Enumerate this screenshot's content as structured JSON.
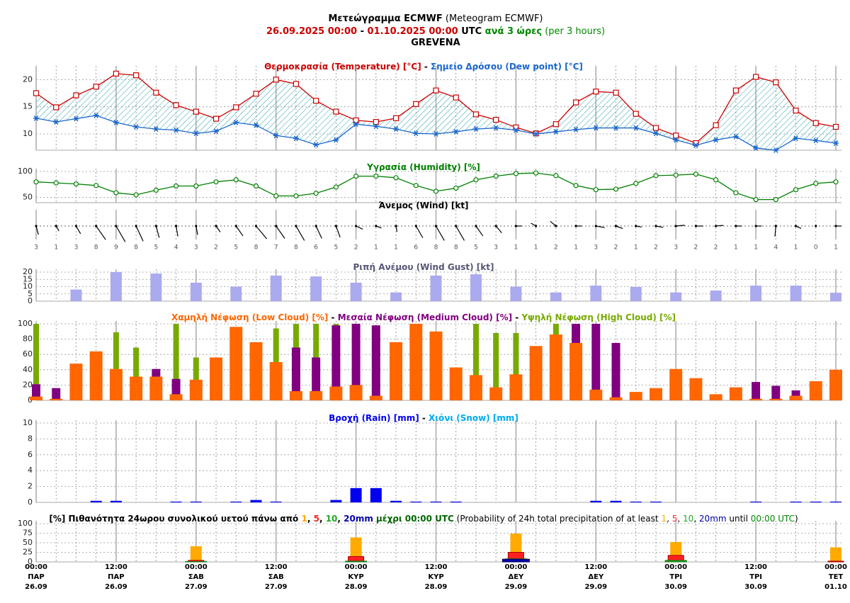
{
  "header": {
    "lines": [
      [
        {
          "text": "Μετεώγραμμα ECMWF",
          "bold": true,
          "color": "#000000"
        },
        {
          "text": " (Meteogram ECMWF)",
          "bold": false,
          "color": "#000000"
        }
      ],
      [
        {
          "text": "26.09.2025 00:00",
          "bold": true,
          "color": "#cc0000"
        },
        {
          "text": " - ",
          "bold": true,
          "color": "#000000"
        },
        {
          "text": "01.10.2025 00:00",
          "bold": true,
          "color": "#cc0000"
        },
        {
          "text": " UTC",
          "bold": true,
          "color": "#000000"
        },
        {
          "text": " ανά 3 ώρες",
          "bold": true,
          "color": "#008800"
        },
        {
          "text": " (per 3 hours)",
          "bold": false,
          "color": "#008800"
        }
      ],
      [
        {
          "text": "GREVENA",
          "bold": true,
          "color": "#000000"
        }
      ]
    ]
  },
  "x_labels": {
    "times": [
      "00:00",
      "12:00",
      "00:00",
      "12:00",
      "00:00",
      "12:00",
      "00:00",
      "12:00",
      "00:00",
      "12:00",
      "00:00"
    ],
    "days": [
      "ΠΑΡ",
      "ΠΑΡ",
      "ΣΑΒ",
      "ΣΑΒ",
      "ΚΥΡ",
      "ΚΥΡ",
      "ΔΕΥ",
      "ΔΕΥ",
      "ΤΡΙ",
      "ΤΡΙ",
      "ΤΕΤ"
    ],
    "dates": [
      "26.09",
      "26.09",
      "27.09",
      "27.09",
      "28.09",
      "28.09",
      "29.09",
      "29.09",
      "30.09",
      "30.09",
      "01.10"
    ]
  },
  "chart_data": [
    {
      "type": "line",
      "title_separator": " - ",
      "fill_between": true,
      "grid": true,
      "series": [
        {
          "name": "Θερμοκρασία (Temperature) [°C]",
          "color": "#cc0000",
          "marker": "square",
          "values": [
            17.5,
            14.9,
            17.1,
            18.7,
            21.1,
            20.8,
            17.6,
            15.3,
            14.1,
            12.8,
            14.9,
            17.4,
            20.0,
            19.2,
            16.1,
            14.1,
            12.5,
            12.2,
            12.9,
            15.5,
            18.0,
            16.7,
            13.6,
            12.6,
            11.2,
            10.1,
            11.8,
            15.8,
            17.8,
            17.6,
            13.7,
            11.1,
            9.7,
            8.3,
            11.6,
            18.0,
            20.5,
            19.5,
            14.3,
            12.0,
            11.3
          ]
        },
        {
          "name": "Σημείο Δρόσου (Dew point) [°C]",
          "color": "#1a66cc",
          "marker": "star",
          "values": [
            12.9,
            12.2,
            12.8,
            13.4,
            12.1,
            11.3,
            10.9,
            10.7,
            10.1,
            10.5,
            12.1,
            11.6,
            9.7,
            9.2,
            8.0,
            8.9,
            11.8,
            11.4,
            10.9,
            10.1,
            10.0,
            10.4,
            10.9,
            11.1,
            10.7,
            10.0,
            10.4,
            10.8,
            11.1,
            11.1,
            11.1,
            10.1,
            8.9,
            7.9,
            8.9,
            9.5,
            7.4,
            7.0,
            9.2,
            8.8,
            8.3
          ]
        }
      ],
      "ylim": [
        7,
        22
      ],
      "yticks": [
        10,
        15,
        20
      ]
    },
    {
      "type": "line",
      "grid": true,
      "series": [
        {
          "name": "Υγρασία (Humidity) [%]",
          "color": "#008000",
          "marker": "circle",
          "values": [
            80,
            78,
            76,
            73,
            59,
            55,
            64,
            72,
            72,
            80,
            84,
            72,
            53,
            53,
            58,
            70,
            91,
            91,
            88,
            73,
            62,
            68,
            84,
            91,
            96,
            97,
            92,
            73,
            65,
            66,
            77,
            92,
            93,
            95,
            84,
            59,
            46,
            46,
            65,
            77,
            80
          ]
        }
      ],
      "ylim": [
        40,
        100
      ],
      "yticks": [
        50,
        100
      ]
    },
    {
      "type": "wind",
      "title": "Άνεμος (Wind) [kt]",
      "values": [
        3,
        1,
        3,
        8,
        9,
        8,
        5,
        4,
        3,
        2,
        5,
        8,
        7,
        8,
        6,
        5,
        2,
        1,
        1,
        6,
        8,
        8,
        5,
        3,
        1,
        1,
        2,
        1,
        3,
        2,
        1,
        2,
        3,
        2,
        2,
        1,
        1,
        4,
        1,
        0,
        1
      ],
      "directions": [
        165,
        150,
        150,
        145,
        150,
        155,
        165,
        170,
        170,
        145,
        145,
        140,
        145,
        150,
        155,
        160,
        115,
        110,
        170,
        150,
        150,
        150,
        145,
        140,
        90,
        300,
        310,
        90,
        100,
        110,
        100,
        100,
        85,
        90,
        85,
        90,
        90,
        185,
        115,
        null,
        90
      ]
    },
    {
      "type": "bar",
      "title": "Ριπή Ανέμου (Wind Gust) [kt]",
      "title_color": "#555577",
      "color": "#aaaaee",
      "grid": true,
      "values": [
        null,
        null,
        8,
        null,
        20,
        null,
        19,
        null,
        12.7,
        null,
        10,
        null,
        17.6,
        null,
        17,
        null,
        12.7,
        null,
        6,
        null,
        17.6,
        null,
        18.5,
        null,
        10,
        null,
        6,
        null,
        10.7,
        null,
        9.8,
        null,
        6,
        null,
        7.3,
        null,
        10.7,
        null,
        10.7,
        null,
        5.8
      ],
      "ylim": [
        0,
        20
      ],
      "yticks": [
        0,
        5,
        10,
        15,
        20
      ]
    },
    {
      "type": "bar",
      "title_separator": " - ",
      "grid": true,
      "series": [
        {
          "name": "Χαμηλή Νέφωση (Low Cloud) [%]",
          "color": "#ff6600",
          "values": [
            5,
            2,
            48,
            64,
            41,
            31,
            31,
            8,
            27,
            56,
            96,
            76,
            50,
            12,
            12,
            18,
            20,
            6,
            76,
            100,
            90,
            43,
            33,
            17,
            34,
            71,
            86,
            75,
            14,
            4,
            11,
            16,
            41,
            29,
            8,
            17,
            2,
            2,
            6,
            25,
            40
          ]
        },
        {
          "name": "Μεσαία Νέφωση (Medium Cloud) [%]",
          "color": "#800080",
          "values": [
            21,
            16,
            0,
            0,
            0,
            0,
            41,
            28,
            0,
            0,
            0,
            0,
            0,
            69,
            56,
            98,
            100,
            98,
            0,
            0,
            0,
            0,
            0,
            0,
            0,
            0,
            0,
            100,
            100,
            75,
            0,
            0,
            0,
            0,
            0,
            0,
            24,
            19,
            13,
            0,
            0
          ]
        },
        {
          "name": "Υψηλή Νέφωση (High Cloud) [%]",
          "color": "#77aa00",
          "values": [
            100,
            0,
            0,
            0,
            89,
            69,
            0,
            100,
            56,
            0,
            0,
            0,
            94,
            100,
            100,
            100,
            100,
            0,
            0,
            0,
            0,
            0,
            100,
            88,
            88,
            0,
            100,
            100,
            0,
            0,
            0,
            0,
            0,
            0,
            0,
            0,
            0,
            0,
            0,
            0,
            0
          ]
        }
      ],
      "ylim": [
        0,
        100
      ],
      "yticks": [
        0,
        20,
        40,
        60,
        80,
        100
      ]
    },
    {
      "type": "bar",
      "title_separator": " - ",
      "grid": true,
      "series": [
        {
          "name": "Βροχή (Rain) [mm]",
          "color": "#0000ee",
          "values": [
            0,
            0,
            0,
            0.2,
            0.2,
            0,
            0,
            0.1,
            0.1,
            0,
            0.1,
            0.3,
            0.1,
            0,
            0,
            0.3,
            1.8,
            1.8,
            0.2,
            0.1,
            0.1,
            0.1,
            0,
            0,
            0,
            0,
            0,
            0,
            0.2,
            0.2,
            0.1,
            0.1,
            0,
            0,
            0,
            0,
            0.1,
            0,
            0.1,
            0.1,
            0.1
          ]
        },
        {
          "name": "Χιόνι (Snow) [mm]",
          "color": "#00aaee",
          "values": [
            0,
            0,
            0,
            0,
            0,
            0,
            0,
            0,
            0,
            0,
            0,
            0,
            0,
            0,
            0,
            0,
            0,
            0,
            0,
            0,
            0,
            0,
            0,
            0,
            0,
            0,
            0,
            0,
            0,
            0,
            0,
            0,
            0,
            0,
            0,
            0,
            0,
            0,
            0,
            0,
            0
          ]
        }
      ],
      "ylim": [
        0,
        10
      ],
      "yticks": [
        0,
        2,
        4,
        6,
        8,
        10
      ]
    },
    {
      "type": "bar",
      "grid": true,
      "title_parts": [
        {
          "text": "[%] Πιθανότητα 24ωρου συνολικού υετού πάνω από ",
          "bold": true,
          "color": "#000000"
        },
        {
          "text": "1",
          "bold": true,
          "color": "#ffaa00"
        },
        {
          "text": ", ",
          "bold": true,
          "color": "#000000"
        },
        {
          "text": "5",
          "bold": true,
          "color": "#ff2020"
        },
        {
          "text": ", ",
          "bold": true,
          "color": "#000000"
        },
        {
          "text": "10",
          "bold": true,
          "color": "#22aa22"
        },
        {
          "text": ", ",
          "bold": true,
          "color": "#000000"
        },
        {
          "text": "20mm",
          "bold": true,
          "color": "#0000aa"
        },
        {
          "text": " μέχρι 00:00 UTC",
          "bold": true,
          "color": "#006600"
        },
        {
          "text": " (Probability of 24h total precipitation of at least ",
          "bold": false,
          "color": "#000000"
        },
        {
          "text": "1",
          "bold": false,
          "color": "#ffaa00"
        },
        {
          "text": ", ",
          "bold": false,
          "color": "#000000"
        },
        {
          "text": "5",
          "bold": false,
          "color": "#ff2020"
        },
        {
          "text": ", ",
          "bold": false,
          "color": "#000000"
        },
        {
          "text": "10",
          "bold": false,
          "color": "#22aa22"
        },
        {
          "text": ", ",
          "bold": false,
          "color": "#000000"
        },
        {
          "text": "20mm",
          "bold": false,
          "color": "#0000aa"
        },
        {
          "text": " until ",
          "bold": false,
          "color": "#000000"
        },
        {
          "text": "00:00 UTC",
          "bold": false,
          "color": "#008800"
        },
        {
          "text": ")",
          "bold": false,
          "color": "#000000"
        }
      ],
      "series": [
        {
          "color": "#ffaa00",
          "values": [
            41,
            64,
            74,
            52,
            38
          ]
        },
        {
          "color": "#ff2020",
          "values": [
            4,
            14,
            25,
            17,
            2
          ]
        },
        {
          "color": "#22aa22",
          "values": [
            1,
            2,
            8,
            4,
            0
          ]
        },
        {
          "color": "#0000aa",
          "values": [
            0,
            0,
            7,
            0,
            0
          ]
        }
      ],
      "ylim": [
        0,
        100
      ],
      "yticks": [
        0,
        25,
        50,
        75,
        100
      ]
    }
  ]
}
